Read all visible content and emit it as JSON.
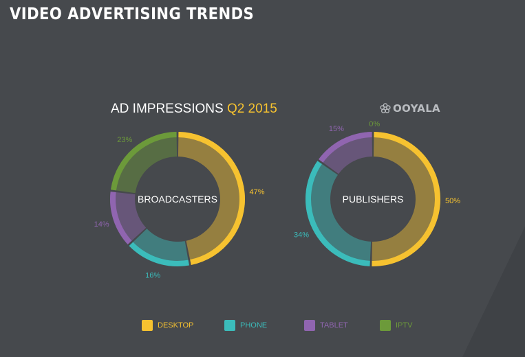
{
  "header": {
    "title": "VIDEO ADVERTISING TRENDS"
  },
  "subtitle": {
    "main": "AD IMPRESSIONS",
    "accent": "Q2 2015"
  },
  "logo": {
    "text": "OOYALA",
    "icon": "ooyala-logo-icon"
  },
  "colors": {
    "background": "#46494d",
    "DESKTOP": "#f6c230",
    "PHONE": "#3bbcbb",
    "TABLET": "#9065b0",
    "IPTV": "#6c9a3a"
  },
  "chart_data": [
    {
      "type": "pie",
      "title": "",
      "center_label": "BROADCASTERS",
      "categories": [
        "DESKTOP",
        "PHONE",
        "TABLET",
        "IPTV"
      ],
      "values": [
        47,
        16,
        14,
        23
      ],
      "labels": [
        "47%",
        "16%",
        "14%",
        "23%"
      ]
    },
    {
      "type": "pie",
      "title": "",
      "center_label": "PUBLISHERS",
      "categories": [
        "DESKTOP",
        "PHONE",
        "TABLET",
        "IPTV"
      ],
      "values": [
        50,
        34,
        15,
        0
      ],
      "labels": [
        "50%",
        "34%",
        "15%",
        "0%"
      ]
    }
  ],
  "legend": {
    "items": [
      {
        "label": "DESKTOP",
        "key": "DESKTOP"
      },
      {
        "label": "PHONE",
        "key": "PHONE"
      },
      {
        "label": "TABLET",
        "key": "TABLET"
      },
      {
        "label": "IPTV",
        "key": "IPTV"
      }
    ]
  }
}
